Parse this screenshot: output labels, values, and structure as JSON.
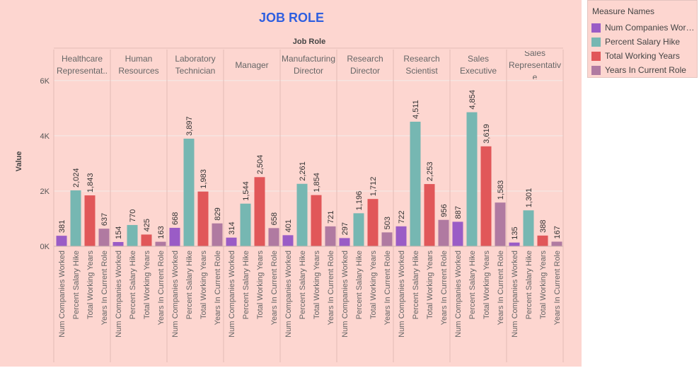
{
  "chart_data": {
    "type": "bar",
    "title": "JOB ROLE",
    "column_header": "Job Role",
    "y_label": "Value",
    "legend_title": "Measure Names",
    "categories": [
      "Healthcare Representat..",
      "Human Resources",
      "Laboratory Technician",
      "Manager",
      "Manufacturing Director",
      "Research Director",
      "Research Scientist",
      "Sales Executive",
      "Sales Representative"
    ],
    "series": [
      {
        "name": "Num Companies Worked",
        "color": "#9a5cc6",
        "values": [
          381,
          154,
          668,
          314,
          401,
          297,
          722,
          887,
          135
        ],
        "value_labels": [
          "381",
          "154",
          "668",
          "314",
          "401",
          "297",
          "722",
          "887",
          "135"
        ]
      },
      {
        "name": "Percent Salary Hike",
        "color": "#76b7b2",
        "values": [
          2024,
          770,
          3897,
          1544,
          2261,
          1196,
          4511,
          4854,
          1301
        ],
        "value_labels": [
          "2,024",
          "770",
          "3,897",
          "1,544",
          "2,261",
          "1,196",
          "4,511",
          "4,854",
          "1,301"
        ]
      },
      {
        "name": "Total Working Years",
        "color": "#e15759",
        "values": [
          1843,
          425,
          1983,
          2504,
          1854,
          1712,
          2253,
          3619,
          388
        ],
        "value_labels": [
          "1,843",
          "425",
          "1,983",
          "2,504",
          "1,854",
          "1,712",
          "2,253",
          "3,619",
          "388"
        ]
      },
      {
        "name": "Years In Current Role",
        "color": "#b07aa1",
        "values": [
          637,
          163,
          829,
          658,
          721,
          503,
          956,
          1583,
          167
        ],
        "value_labels": [
          "637",
          "163",
          "829",
          "658",
          "721",
          "503",
          "956",
          "1,583",
          "167"
        ]
      }
    ],
    "ylim": [
      0,
      6150
    ],
    "yticks": [
      {
        "value": 0,
        "label": "0K"
      },
      {
        "value": 2000,
        "label": "2K"
      },
      {
        "value": 4000,
        "label": "4K"
      },
      {
        "value": 6000,
        "label": "6K"
      }
    ],
    "grid": true,
    "legend": "right"
  }
}
